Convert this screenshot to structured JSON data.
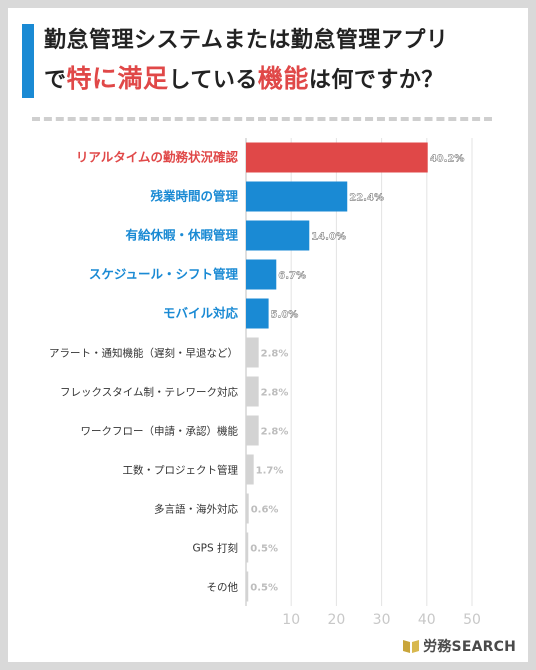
{
  "title": {
    "line1": "勤怠管理システムまたは勤怠管理アプリ",
    "line2_pre": "で",
    "line2_hl1": "特に満足",
    "line2_mid": "している",
    "line2_hl2": "機能",
    "line2_post": "は何ですか？"
  },
  "logo": {
    "brand_jp": "労務",
    "brand_en": "SEARCH",
    "icon": "book-icon"
  },
  "colors": {
    "top": "#e04848",
    "blue": "#1a8ad4",
    "gray": "#d3d3d3",
    "gray_label": "#bdbdbd",
    "label_dark": "#333333"
  },
  "chart_data": {
    "type": "bar",
    "orientation": "horizontal",
    "categories": [
      "リアルタイムの勤務状況確認",
      "残業時間の管理",
      "有給休暇・休暇管理",
      "スケジュール・シフト管理",
      "モバイル対応",
      "アラート・通知機能（遅刻・早退など）",
      "フレックスタイム制・テレワーク対応",
      "ワークフロー（申請・承認）機能",
      "工数・プロジェクト管理",
      "多言語・海外対応",
      "GPS 打刻",
      "その他"
    ],
    "values": [
      40.2,
      22.4,
      14.0,
      6.7,
      5.0,
      2.8,
      2.8,
      2.8,
      1.7,
      0.6,
      0.5,
      0.5
    ],
    "value_labels": [
      "40.2%",
      "22.4%",
      "14.0%",
      "6.7%",
      "5.0%",
      "2.8%",
      "2.8%",
      "2.8%",
      "1.7%",
      "0.6%",
      "0.5%",
      "0.5%"
    ],
    "xticks": [
      "10",
      "20",
      "30",
      "40",
      "50"
    ],
    "xlim": [
      0,
      50
    ],
    "grid": true
  }
}
